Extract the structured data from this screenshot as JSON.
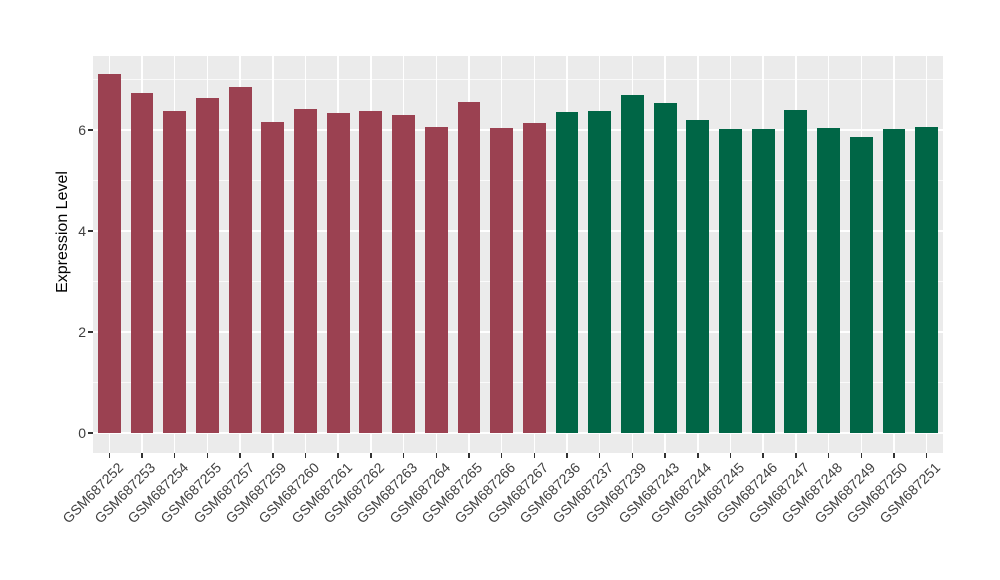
{
  "chart_data": {
    "type": "bar",
    "title": "",
    "xlabel": "",
    "ylabel": "Expression Level",
    "ylim": [
      0,
      7.47
    ],
    "yticks": [
      0,
      2,
      4,
      6
    ],
    "yticks_minor": [
      1,
      3,
      5,
      7
    ],
    "grid": "on",
    "legend": "none",
    "categories": [
      "GSM687252",
      "GSM687253",
      "GSM687254",
      "GSM687255",
      "GSM687257",
      "GSM687259",
      "GSM687260",
      "GSM687261",
      "GSM687262",
      "GSM687263",
      "GSM687264",
      "GSM687265",
      "GSM687266",
      "GSM687267",
      "GSM687236",
      "GSM687237",
      "GSM687239",
      "GSM687243",
      "GSM687244",
      "GSM687245",
      "GSM687246",
      "GSM687247",
      "GSM687248",
      "GSM687249",
      "GSM687250",
      "GSM687251"
    ],
    "values": [
      7.1,
      6.73,
      6.38,
      6.63,
      6.86,
      6.16,
      6.41,
      6.34,
      6.38,
      6.3,
      6.06,
      6.55,
      6.04,
      6.13,
      6.36,
      6.38,
      6.69,
      6.53,
      6.2,
      6.01,
      6.01,
      6.4,
      6.03,
      5.87,
      6.02,
      6.06
    ],
    "groups": [
      "group1",
      "group1",
      "group1",
      "group1",
      "group1",
      "group1",
      "group1",
      "group1",
      "group1",
      "group1",
      "group1",
      "group1",
      "group1",
      "group1",
      "group2",
      "group2",
      "group2",
      "group2",
      "group2",
      "group2",
      "group2",
      "group2",
      "group2",
      "group2",
      "group2",
      "group2"
    ],
    "group_colors": {
      "group1": "#9B4151",
      "group2": "#006646"
    },
    "panel_bg": "#EBEBEB",
    "grid_color": "#FFFFFF",
    "tick_color": "#333333",
    "axis_text_color": "#404040"
  }
}
